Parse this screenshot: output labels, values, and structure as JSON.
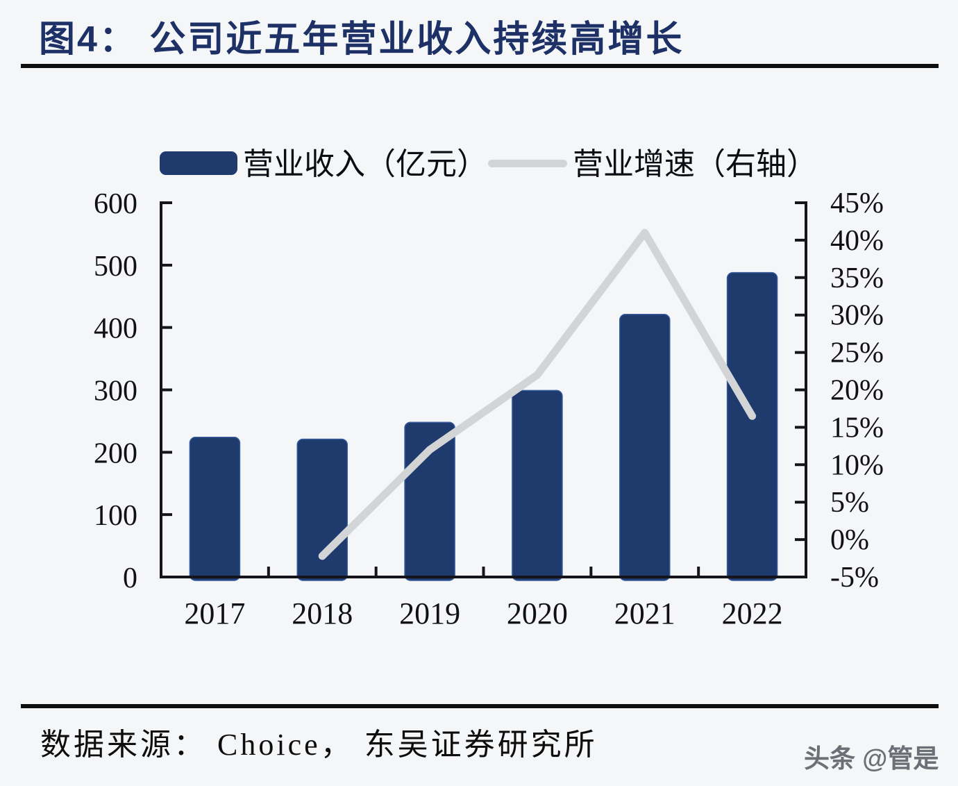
{
  "figure": {
    "title": "图4： 公司近五年营业收入持续高增长",
    "source": "数据来源： Choice， 东吴证券研究所",
    "watermark": "头条 @管是"
  },
  "legend": {
    "items": [
      {
        "label": "营业收入（亿元）",
        "swatch": "bar"
      },
      {
        "label": "营业增速（右轴）",
        "swatch": "line"
      }
    ],
    "position": "top"
  },
  "colors": {
    "title": "#1e3166",
    "bar": "#1f3a6c",
    "bar_edge": "#35599c",
    "line": "#d3d4d6",
    "axis": "#14141a",
    "tick_text": "#101016",
    "rule": "#0e0e0e",
    "background": "#f5f6f8",
    "watermark": "#6b6f76"
  },
  "chart_data": {
    "type": "bar+line",
    "categories": [
      "2017",
      "2018",
      "2019",
      "2020",
      "2021",
      "2022"
    ],
    "series": [
      {
        "name": "营业收入（亿元）",
        "type": "bar",
        "axis": "left",
        "values": [
          224,
          221,
          248,
          299,
          421,
          488
        ]
      },
      {
        "name": "营业增速（右轴）",
        "type": "line",
        "axis": "right",
        "values_pct": [
          null,
          -2.2,
          12,
          22,
          41,
          16.5
        ]
      }
    ],
    "left_axis": {
      "min": 0,
      "max": 600,
      "step": 100,
      "tick_labels": [
        "600",
        "500",
        "400",
        "300",
        "200",
        "100",
        "0"
      ]
    },
    "right_axis": {
      "min": -5,
      "max": 45,
      "step": 5,
      "tick_labels": [
        "45%",
        "40%",
        "35%",
        "30%",
        "25%",
        "20%",
        "15%",
        "10%",
        "5%",
        "0%",
        "-5%"
      ]
    },
    "grid": false,
    "legend_position": "top"
  }
}
